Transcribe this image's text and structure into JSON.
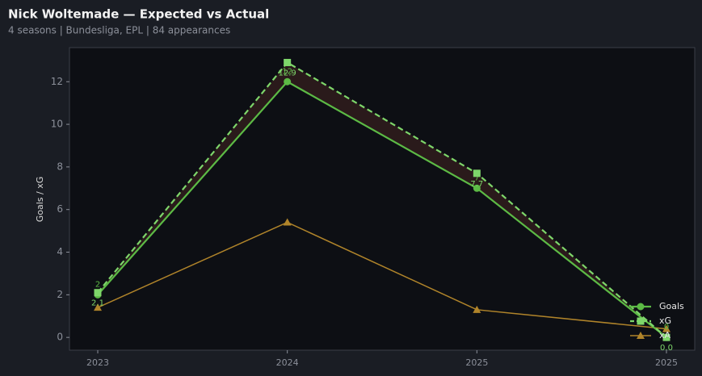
{
  "chart_data": {
    "type": "line",
    "title": "Nick Woltemade — Expected vs Actual",
    "subtitle": "4 seasons | Bundesliga, EPL | 84 appearances",
    "y_label": "Goals / xG",
    "categories": [
      "2023",
      "2024",
      "2025",
      "2025"
    ],
    "series": [
      {
        "name": "Goals",
        "color": "#5cba45",
        "values": [
          2,
          12,
          7,
          0
        ]
      },
      {
        "name": "xG",
        "color": "#7ed66a",
        "values": [
          2.1,
          12.9,
          7.7,
          0.0
        ],
        "value_labels": [
          "2.1",
          "12.9",
          "7.7",
          "0.0"
        ]
      },
      {
        "name": "xA",
        "color": "#b0842a",
        "values": [
          1.4,
          5.4,
          1.3,
          0.4
        ]
      }
    ],
    "ylim": [
      -0.6,
      13.6
    ],
    "yticks": [
      0,
      2,
      4,
      6,
      8,
      10,
      12
    ],
    "legend": "lower right"
  }
}
